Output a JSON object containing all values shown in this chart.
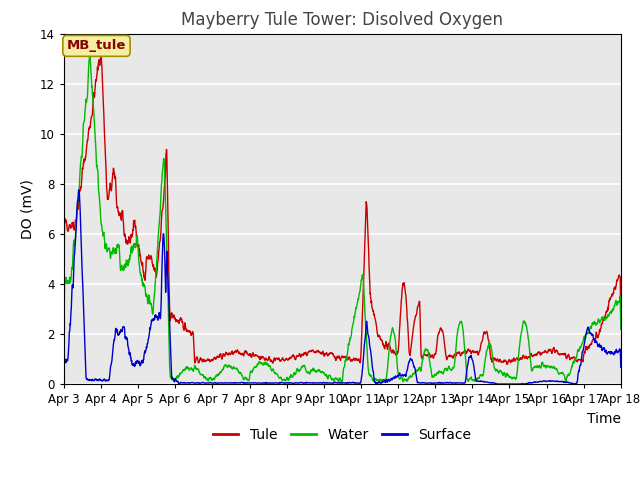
{
  "title": "Mayberry Tule Tower: Disolved Oxygen",
  "xlabel": "Time",
  "ylabel": "DO (mV)",
  "ylim": [
    0,
    14
  ],
  "x_tick_labels": [
    "Apr 3",
    "Apr 4",
    "Apr 5",
    "Apr 6",
    "Apr 7",
    "Apr 8",
    "Apr 9",
    "Apr 10",
    "Apr 11",
    "Apr 12",
    "Apr 13",
    "Apr 14",
    "Apr 15",
    "Apr 16",
    "Apr 17",
    "Apr 18"
  ],
  "annotation_text": "MB_tule",
  "annotation_box_facecolor": "#f5f0a0",
  "annotation_box_edgecolor": "#a09000",
  "annotation_text_color": "#8b0000",
  "bg_color": "#e8e8e8",
  "grid_color": "#ffffff",
  "tule_color": "#cc0000",
  "water_color": "#00bb00",
  "surface_color": "#0000cc",
  "line_width": 1.0,
  "title_fontsize": 12,
  "axis_label_fontsize": 10,
  "tick_fontsize": 8.5,
  "legend_fontsize": 10
}
